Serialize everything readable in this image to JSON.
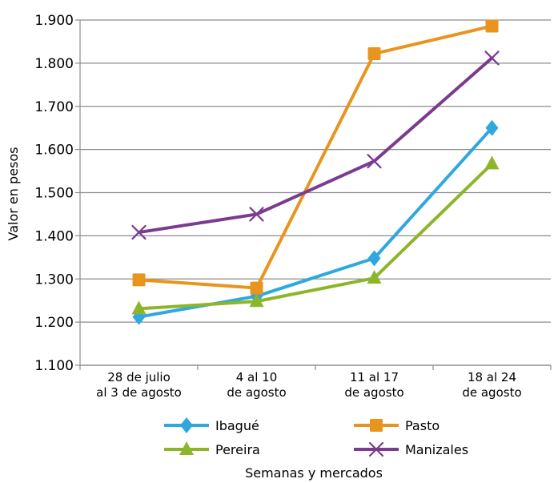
{
  "chart_data": {
    "type": "line",
    "title": "",
    "xlabel": "Semanas y mercados",
    "ylabel": "Valor en pesos",
    "ylim": [
      1100,
      1900
    ],
    "yticks": [
      1100,
      1200,
      1300,
      1400,
      1500,
      1600,
      1700,
      1800,
      1900
    ],
    "ytick_labels": [
      "1.100",
      "1.200",
      "1.300",
      "1.400",
      "1.500",
      "1.600",
      "1.700",
      "1.800",
      "1.900"
    ],
    "grid": "horizontal",
    "legend_position": "bottom",
    "categories": [
      [
        "28 de julio",
        "al 3 de agosto"
      ],
      [
        "4 al 10",
        "de agosto"
      ],
      [
        "11 al 17",
        "de agosto"
      ],
      [
        "18 al 24",
        "de agosto"
      ]
    ],
    "series": [
      {
        "name": "Ibagué",
        "color": "#2ea8df",
        "marker": "diamond",
        "values": [
          1212,
          1260,
          1348,
          1650
        ]
      },
      {
        "name": "Pasto",
        "color": "#e8951f",
        "marker": "square",
        "values": [
          1298,
          1279,
          1822,
          1886
        ]
      },
      {
        "name": "Pereira",
        "color": "#8db52a",
        "marker": "triangle",
        "values": [
          1231,
          1248,
          1302,
          1567
        ]
      },
      {
        "name": "Manizales",
        "color": "#7b3b8f",
        "marker": "x",
        "values": [
          1408,
          1450,
          1573,
          1812
        ]
      }
    ]
  }
}
